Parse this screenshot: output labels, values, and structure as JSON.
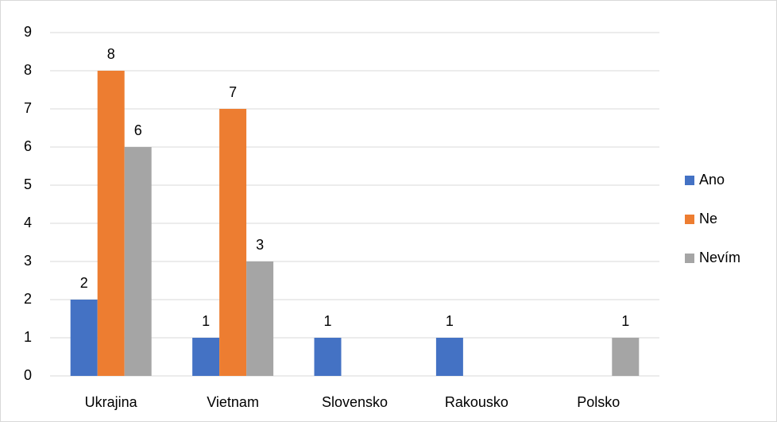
{
  "chart_data": {
    "type": "bar",
    "categories": [
      "Ukrajina",
      "Vietnam",
      "Slovensko",
      "Rakousko",
      "Polsko"
    ],
    "series": [
      {
        "name": "Ano",
        "color": "#4472c4",
        "values": [
          2,
          1,
          1,
          1,
          null
        ]
      },
      {
        "name": "Ne",
        "color": "#ed7d31",
        "values": [
          8,
          7,
          null,
          null,
          null
        ]
      },
      {
        "name": "Nevím",
        "color": "#a5a5a5",
        "values": [
          6,
          3,
          null,
          null,
          1
        ]
      }
    ],
    "ylim": [
      0,
      9
    ],
    "yticks": [
      0,
      1,
      2,
      3,
      4,
      5,
      6,
      7,
      8,
      9
    ],
    "grid": true,
    "legend": "right"
  }
}
